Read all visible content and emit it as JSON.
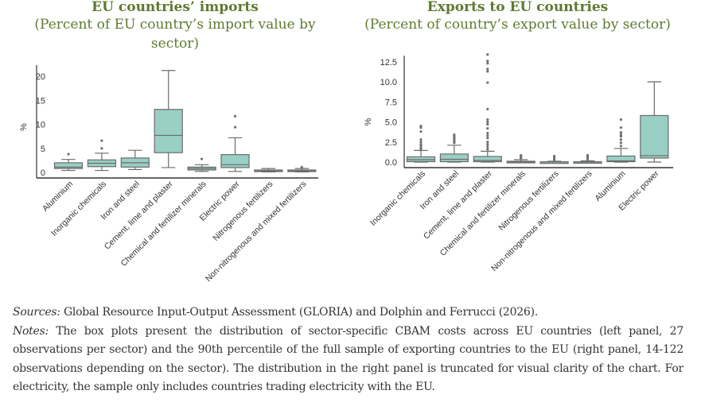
{
  "panels": {
    "left": {
      "title": "EU countries’ imports",
      "subtitle_line1": "(Percent of EU country’s import value by",
      "subtitle_line2": "sector)"
    },
    "right": {
      "title": "Exports to EU countries",
      "subtitle_line1": "(Percent of country’s export value by sector)"
    }
  },
  "colors": {
    "title": "#5f7a30",
    "box_fill": "#99cfc4",
    "box_stroke": "#6b6b6b",
    "outlier": "#707070",
    "axis": "#333333"
  },
  "chart_data": [
    {
      "type": "box",
      "title": "EU countries’ imports (Percent of EU country’s import value by sector)",
      "xlabel": "",
      "ylabel": "%",
      "ylim": [
        -0.5,
        21.5
      ],
      "yticks": [
        0,
        5,
        10,
        15,
        20
      ],
      "ytick_labels": [
        "0",
        "5",
        "10",
        "15",
        "20"
      ],
      "grid": false,
      "categories": [
        "Aluminium",
        "Inorganic chemicals",
        "Iron and steel",
        "Cement, lime and plaster",
        "Chemical and fertilizer minerals",
        "Electric power",
        "Nitrogenous fertilizers",
        "Non-nitrogenous and mixed fertilizers"
      ],
      "boxes": [
        {
          "whislo": 0.4,
          "q1": 0.8,
          "med": 1.1,
          "q3": 2.0,
          "whishi": 2.7,
          "fliers": [
            3.8
          ]
        },
        {
          "whislo": 0.4,
          "q1": 1.2,
          "med": 1.9,
          "q3": 2.6,
          "whishi": 4.0,
          "fliers": [
            5.0,
            6.6
          ]
        },
        {
          "whislo": 0.6,
          "q1": 1.1,
          "med": 2.0,
          "q3": 3.0,
          "whishi": 4.6,
          "fliers": []
        },
        {
          "whislo": 1.0,
          "q1": 4.1,
          "med": 7.7,
          "q3": 13.1,
          "whishi": 21.2,
          "fliers": []
        },
        {
          "whislo": 0.2,
          "q1": 0.5,
          "med": 0.8,
          "q3": 1.1,
          "whishi": 1.6,
          "fliers": [
            2.8
          ]
        },
        {
          "whislo": 0.2,
          "q1": 1.0,
          "med": 1.6,
          "q3": 3.7,
          "whishi": 7.2,
          "fliers": [
            9.4,
            11.7
          ]
        },
        {
          "whislo": 0.1,
          "q1": 0.2,
          "med": 0.3,
          "q3": 0.5,
          "whishi": 0.8,
          "fliers": []
        },
        {
          "whislo": 0.1,
          "q1": 0.2,
          "med": 0.3,
          "q3": 0.5,
          "whishi": 0.8,
          "fliers": [
            1.1
          ]
        }
      ]
    },
    {
      "type": "box",
      "title": "Exports to EU countries (Percent of country’s export value by sector)",
      "xlabel": "",
      "ylabel": "%",
      "ylim": [
        -0.7,
        14.0
      ],
      "yticks": [
        0.0,
        2.5,
        5.0,
        7.5,
        10.0,
        12.5
      ],
      "ytick_labels": [
        "0.0",
        "2.5",
        "5.0",
        "7.5",
        "10.0",
        "12.5"
      ],
      "grid": false,
      "categories": [
        "Inorganic chemicals",
        "Iron and steel",
        "Cement, lime and plaster",
        "Chemical and fertilizer minerals",
        "Nitrogenous fertilizers",
        "Non-nitrogenous and mixed fertilizers",
        "Aluminium",
        "Electric power"
      ],
      "boxes": [
        {
          "whislo": 0.0,
          "q1": 0.05,
          "med": 0.3,
          "q3": 0.65,
          "whishi": 1.45,
          "fliers": [
            1.6,
            1.8,
            2.0,
            2.2,
            2.5,
            2.8,
            3.8,
            4.3,
            4.5
          ]
        },
        {
          "whislo": 0.0,
          "q1": 0.05,
          "med": 0.35,
          "q3": 1.0,
          "whishi": 2.1,
          "fliers": [
            2.4,
            2.6,
            2.8,
            3.0,
            3.2,
            3.4
          ]
        },
        {
          "whislo": 0.0,
          "q1": 0.05,
          "med": 0.2,
          "q3": 0.7,
          "whishi": 1.35,
          "fliers": [
            1.6,
            1.9,
            2.2,
            2.5,
            3.0,
            3.3,
            3.6,
            4.2,
            4.7,
            5.0,
            5.3,
            6.6,
            9.9,
            11.3,
            11.6,
            12.3,
            12.6,
            13.4
          ]
        },
        {
          "whislo": 0.0,
          "q1": 0.01,
          "med": 0.02,
          "q3": 0.1,
          "whishi": 0.3,
          "fliers": [
            0.5,
            0.6,
            0.7,
            0.85
          ]
        },
        {
          "whislo": 0.0,
          "q1": 0.0,
          "med": 0.01,
          "q3": 0.03,
          "whishi": 0.1,
          "fliers": [
            0.3,
            0.45,
            0.6,
            0.75
          ]
        },
        {
          "whislo": 0.0,
          "q1": 0.0,
          "med": 0.01,
          "q3": 0.05,
          "whishi": 0.15,
          "fliers": [
            0.35,
            0.55,
            0.7,
            0.85
          ]
        },
        {
          "whislo": 0.0,
          "q1": 0.05,
          "med": 0.15,
          "q3": 0.75,
          "whishi": 1.7,
          "fliers": [
            2.0,
            2.4,
            2.8,
            3.2,
            3.4,
            3.7,
            4.3,
            5.3
          ]
        },
        {
          "whislo": 0.0,
          "q1": 0.5,
          "med": 0.8,
          "q3": 5.8,
          "whishi": 10.0,
          "fliers": []
        }
      ]
    }
  ],
  "notes": {
    "sources_label": "Sources:",
    "sources_text": " Global Resource Input-Output Assessment (GLORIA) and Dolphin and Ferrucci (2026).",
    "notes_label": "Notes:",
    "notes_line1": " The box plots present the distribution of sector-specific CBAM costs across EU countries (left panel, 27",
    "notes_line2": "observations per sector) and the 90th percentile of the full sample of exporting countries to the EU (right panel, 14-122",
    "notes_line3": "observations depending on the sector). The distribution in the right panel is truncated for visual clarity of the chart. For",
    "notes_line4": "electricity, the sample only includes countries trading electricity with the EU."
  }
}
